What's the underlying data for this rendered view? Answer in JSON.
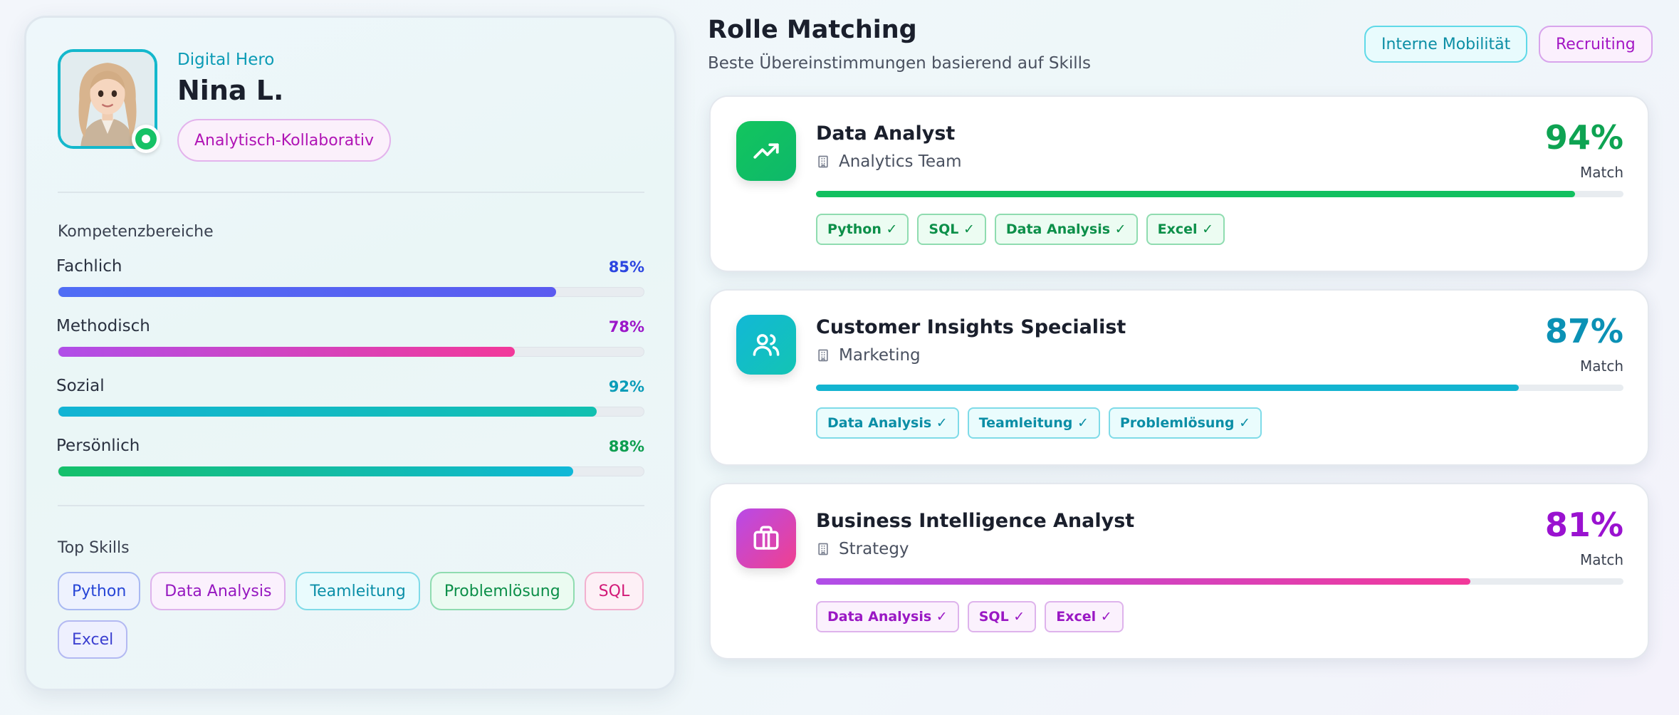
{
  "profile": {
    "role_label": "Digital Hero",
    "name": "Nina L.",
    "persona": "Analytisch-Kollaborativ",
    "status": "online",
    "competencies_title": "Kompetenzbereiche",
    "competencies": [
      {
        "label": "Fachlich",
        "value": 85,
        "value_text": "85%",
        "color": "#2b45e0",
        "gradient": [
          "#4f6df5",
          "#5b5bf0"
        ]
      },
      {
        "label": "Methodisch",
        "value": 78,
        "value_text": "78%",
        "color": "#9b16c9",
        "gradient": [
          "#b04ee8",
          "#f2399a"
        ]
      },
      {
        "label": "Sozial",
        "value": 92,
        "value_text": "92%",
        "color": "#0a9cb8",
        "gradient": [
          "#12b4d4",
          "#12c0b0"
        ]
      },
      {
        "label": "Persönlich",
        "value": 88,
        "value_text": "88%",
        "color": "#0d9e4f",
        "gradient": [
          "#14c06a",
          "#10b8d8"
        ]
      }
    ],
    "top_skills_title": "Top Skills",
    "top_skills": [
      {
        "label": "Python",
        "color": "#2645d6",
        "bg": "#eef2fe",
        "border": "#a9b9f2"
      },
      {
        "label": "Data Analysis",
        "color": "#9618c0",
        "bg": "#fbf1fd",
        "border": "#deb3ec"
      },
      {
        "label": "Teamleitung",
        "color": "#0b8fa8",
        "bg": "#e9fbfd",
        "border": "#7fdbe8"
      },
      {
        "label": "Problemlösung",
        "color": "#0c8f49",
        "bg": "#ebfbf1",
        "border": "#8fdcb0"
      },
      {
        "label": "SQL",
        "color": "#d21a78",
        "bg": "#fdf0f6",
        "border": "#f2b0cf"
      },
      {
        "label": "Excel",
        "color": "#3b3fd0",
        "bg": "#eef0fe",
        "border": "#b3b9f2"
      }
    ]
  },
  "matching": {
    "title": "Rolle Matching",
    "subtitle": "Beste Übereinstimmungen basierend auf Skills",
    "tabs": [
      {
        "label": "Interne Mobilität"
      },
      {
        "label": "Recruiting"
      }
    ],
    "match_label": "Match",
    "roles": [
      {
        "title": "Data Analyst",
        "team": "Analytics Team",
        "pct": 94,
        "pct_text": "94%",
        "icon": "trending-up-icon",
        "icon_gradient": [
          "#12c55e",
          "#0eb86a"
        ],
        "pct_color": "#0ea352",
        "bar_gradient": [
          "#12c060",
          "#12c060"
        ],
        "skill_style": {
          "color": "#0c8f49",
          "bg": "#ecfcf2",
          "border": "#8fdcb0"
        },
        "skills": [
          "Python ✓",
          "SQL ✓",
          "Data Analysis ✓",
          "Excel ✓"
        ]
      },
      {
        "title": "Customer Insights Specialist",
        "team": "Marketing",
        "pct": 87,
        "pct_text": "87%",
        "icon": "users-icon",
        "icon_gradient": [
          "#12b8d6",
          "#13c4b4"
        ],
        "pct_color": "#0b91b5",
        "bar_gradient": [
          "#13b4d0",
          "#13b4d0"
        ],
        "skill_style": {
          "color": "#0b8ea6",
          "bg": "#eafcfd",
          "border": "#7fdbe8"
        },
        "skills": [
          "Data Analysis ✓",
          "Teamleitung ✓",
          "Problemlösung ✓"
        ]
      },
      {
        "title": "Business Intelligence Analyst",
        "team": "Strategy",
        "pct": 81,
        "pct_text": "81%",
        "icon": "briefcase-icon",
        "icon_gradient": [
          "#b84ae8",
          "#f0408f"
        ],
        "pct_color": "#9a12d0",
        "bar_gradient": [
          "#b04ee8",
          "#f2399a"
        ],
        "skill_style": {
          "color": "#9a18c4",
          "bg": "#fbf1fd",
          "border": "#deb3ec"
        },
        "skills": [
          "Data Analysis ✓",
          "SQL ✓",
          "Excel ✓"
        ]
      }
    ]
  }
}
